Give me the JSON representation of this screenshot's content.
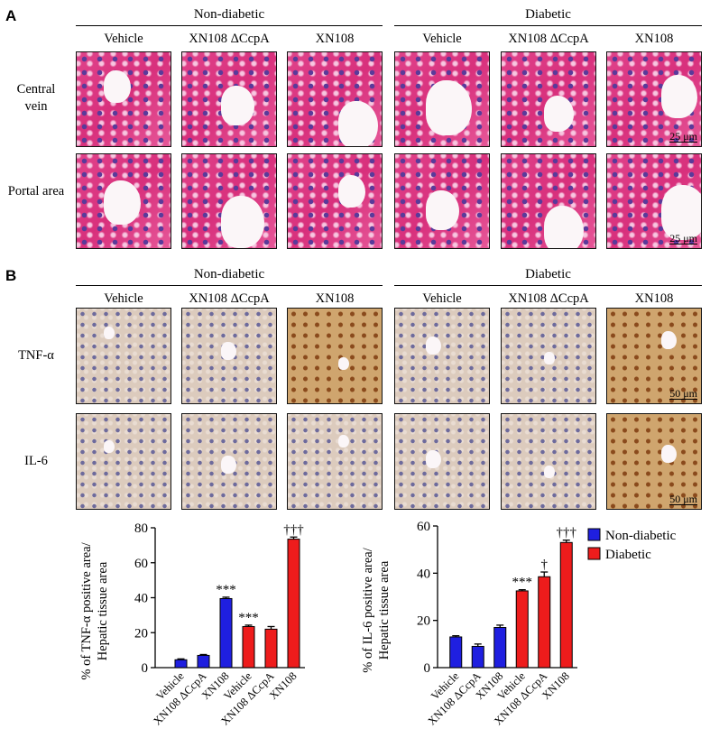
{
  "panel_a": {
    "letter": "A",
    "groups": [
      "Non-diabetic",
      "Diabetic"
    ],
    "columns": [
      "Vehicle",
      "XN108 ΔCcpA",
      "XN108",
      "Vehicle",
      "XN108 ΔCcpA",
      "XN108"
    ],
    "rows": [
      "Central vein",
      "Portal area"
    ],
    "scale_bar": "25 μm"
  },
  "panel_b": {
    "letter": "B",
    "groups": [
      "Non-diabetic",
      "Diabetic"
    ],
    "columns": [
      "Vehicle",
      "XN108 ΔCcpA",
      "XN108",
      "Vehicle",
      "XN108 ΔCcpA",
      "XN108"
    ],
    "rows": [
      "TNF-α",
      "IL-6"
    ],
    "scale_bar": "50 μm"
  },
  "chart_data": [
    {
      "type": "bar",
      "ylabel": [
        "% of TNF-α positive area/",
        "Hepatic tissue area"
      ],
      "categories": [
        "Vehicle",
        "XN108 ΔCcpA",
        "XN108",
        "Vehicle",
        "XN108 ΔCcpA",
        "XN108"
      ],
      "values": [
        4.5,
        7,
        39.5,
        23.5,
        22,
        73.5
      ],
      "errors": [
        0.5,
        0.5,
        0.8,
        0.8,
        1.5,
        1.2
      ],
      "colors": [
        "#1f1fe0",
        "#1f1fe0",
        "#1f1fe0",
        "#ee1c1c",
        "#ee1c1c",
        "#ee1c1c"
      ],
      "annotations": [
        null,
        null,
        "***",
        "***",
        null,
        "†††"
      ],
      "ylim": [
        0,
        80
      ],
      "yticks": [
        0,
        20,
        40,
        60,
        80
      ]
    },
    {
      "type": "bar",
      "ylabel": [
        "% of IL-6 positive area/",
        "Hepatic tissue area"
      ],
      "categories": [
        "Vehicle",
        "XN108 ΔCcpA",
        "XN108",
        "Vehicle",
        "XN108 ΔCcpA",
        "XN108"
      ],
      "values": [
        13,
        9,
        17,
        32.5,
        38.5,
        53
      ],
      "errors": [
        0.5,
        1,
        1,
        0.5,
        2,
        1
      ],
      "colors": [
        "#1f1fe0",
        "#1f1fe0",
        "#1f1fe0",
        "#ee1c1c",
        "#ee1c1c",
        "#ee1c1c"
      ],
      "annotations": [
        null,
        null,
        null,
        "***",
        "†",
        "†††"
      ],
      "ylim": [
        0,
        60
      ],
      "yticks": [
        0,
        20,
        40,
        60
      ],
      "legend": {
        "position": "upper right",
        "entries": [
          {
            "name": "Non-diabetic",
            "color": "#1f1fe0"
          },
          {
            "name": "Diabetic",
            "color": "#ee1c1c"
          }
        ]
      }
    }
  ]
}
